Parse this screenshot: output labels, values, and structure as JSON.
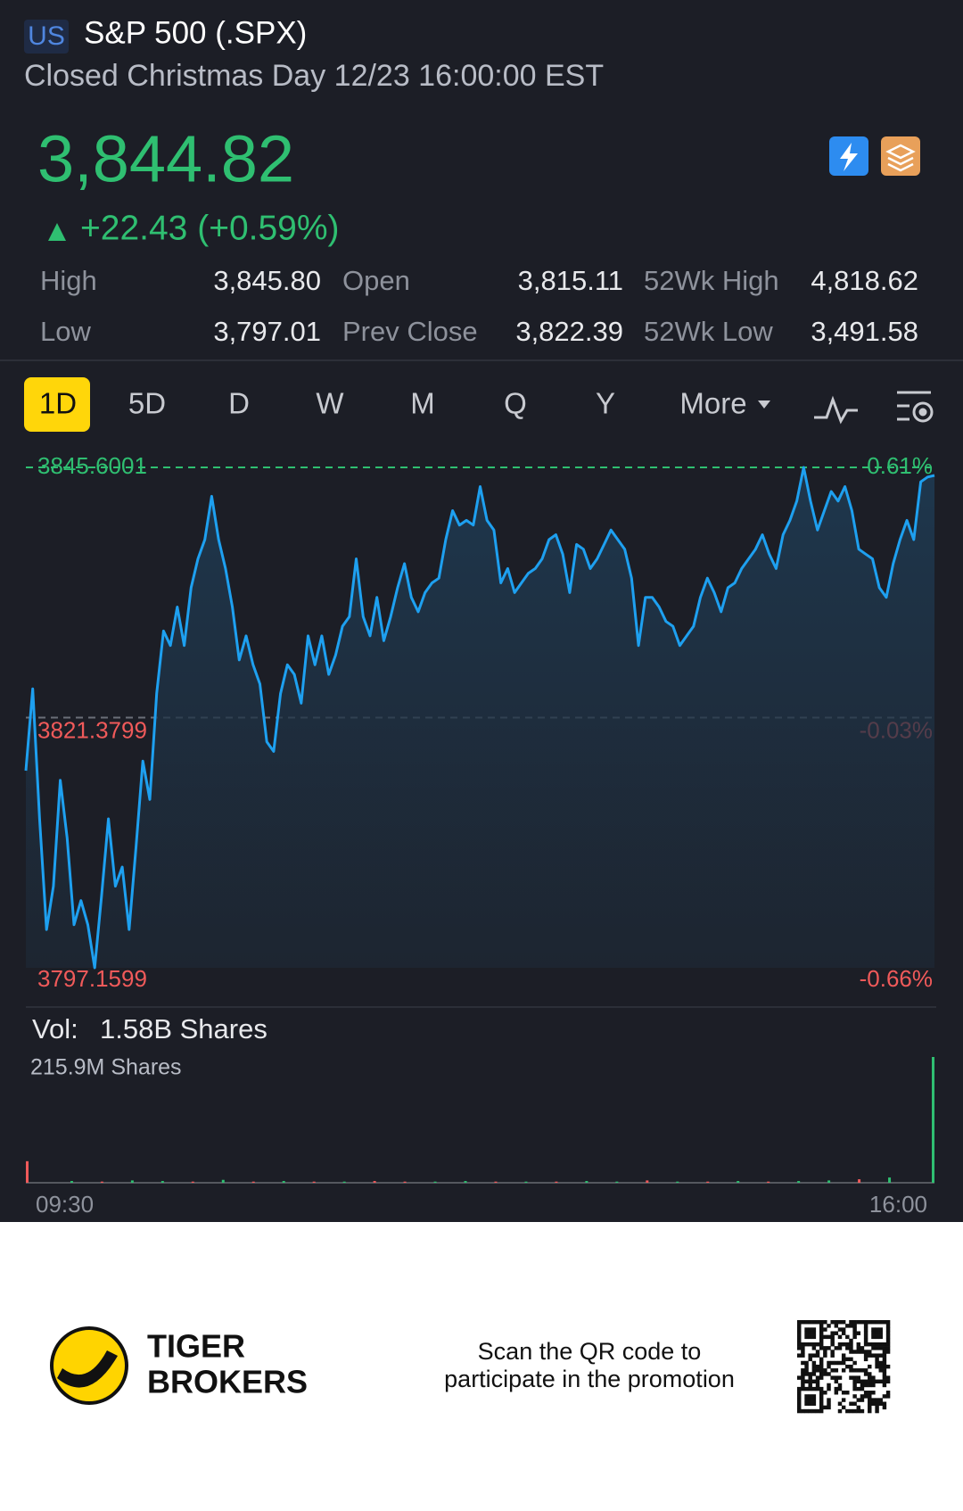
{
  "header": {
    "market": "US",
    "title": "S&P 500 (.SPX)",
    "status": "Closed Christmas Day 12/23 16:00:00 EST"
  },
  "quote": {
    "price": "3,844.82",
    "change": "+22.43 (+0.59%)"
  },
  "stats": {
    "rows": [
      [
        "High",
        "3,845.80",
        "Open",
        "3,815.11",
        "52Wk High",
        "4,818.62"
      ],
      [
        "Low",
        "3,797.01",
        "Prev Close",
        "3,822.39",
        "52Wk Low",
        "3,491.58"
      ]
    ]
  },
  "tabs": {
    "items": [
      "1D",
      "5D",
      "D",
      "W",
      "M",
      "Q",
      "Y",
      "More"
    ],
    "active": "1D"
  },
  "chart_data": [
    {
      "type": "line",
      "color": "#1ea0f0",
      "up_color": "#2fbf71",
      "down_color": "#f05a5a",
      "values": [
        3816.24,
        3824.16,
        3811.58,
        3800.86,
        3805.06,
        3815.31,
        3809.72,
        3801.33,
        3803.66,
        3801.33,
        3797.16,
        3804.13,
        3811.58,
        3805.06,
        3806.92,
        3800.86,
        3808.79,
        3817.17,
        3813.45,
        3823.7,
        3829.76,
        3828.36,
        3832.09,
        3828.36,
        3833.95,
        3836.75,
        3838.61,
        3842.8,
        3838.61,
        3835.81,
        3832.09,
        3826.96,
        3829.29,
        3826.49,
        3824.63,
        3819.04,
        3818.11,
        3823.7,
        3826.49,
        3825.56,
        3822.77,
        3829.29,
        3826.49,
        3829.29,
        3825.56,
        3827.43,
        3830.22,
        3831.15,
        3836.75,
        3831.15,
        3829.29,
        3833.02,
        3828.82,
        3831.15,
        3833.95,
        3836.28,
        3833.02,
        3831.62,
        3833.48,
        3834.42,
        3834.88,
        3838.61,
        3841.41,
        3840.01,
        3840.47,
        3840.01,
        3843.74,
        3840.47,
        3839.54,
        3834.42,
        3835.81,
        3833.48,
        3834.42,
        3835.35,
        3835.81,
        3836.75,
        3838.61,
        3839.08,
        3837.21,
        3833.48,
        3838.14,
        3837.68,
        3835.81,
        3836.75,
        3838.14,
        3839.54,
        3838.61,
        3837.68,
        3834.88,
        3828.36,
        3833.02,
        3833.02,
        3832.09,
        3830.69,
        3830.22,
        3828.36,
        3829.29,
        3830.22,
        3833.02,
        3834.88,
        3833.48,
        3831.62,
        3833.95,
        3834.42,
        3835.81,
        3836.75,
        3837.68,
        3839.08,
        3837.21,
        3835.81,
        3839.08,
        3840.47,
        3842.34,
        3845.6,
        3842.34,
        3839.54,
        3841.41,
        3843.27,
        3842.34,
        3843.74,
        3841.41,
        3837.68,
        3837.21,
        3836.75,
        3833.95,
        3833.02,
        3836.28,
        3838.61,
        3840.47,
        3838.61,
        3844.2,
        3844.67,
        3844.82
      ],
      "ylim": [
        3797.1599,
        3845.6001
      ],
      "yticks": [
        3797.1599,
        3821.3799,
        3845.6001
      ],
      "y2lim": [
        -0.66,
        0.61
      ],
      "y2ticks": [
        {
          "value": -0.66,
          "label": "-0.66%"
        },
        {
          "value": -0.03,
          "label": "-0.03%"
        },
        {
          "value": 0.61,
          "label": "0.61%"
        }
      ]
    },
    {
      "type": "bar",
      "label": "Vol:",
      "total": "1.58B Shares",
      "values": [
        37,
        3,
        2,
        4,
        3,
        2,
        5,
        2,
        3,
        2,
        2,
        3,
        2,
        2,
        3,
        2,
        2,
        2,
        3,
        2,
        4,
        2,
        2,
        3,
        2,
        3,
        4,
        6,
        9,
        215.9
      ],
      "colors": [
        "#f05a5a",
        "#2fbf71",
        "#f05a5a",
        "#2fbf71",
        "#2fbf71",
        "#f05a5a",
        "#2fbf71",
        "#f05a5a",
        "#2fbf71",
        "#f05a5a",
        "#2fbf71",
        "#f05a5a",
        "#f05a5a",
        "#2fbf71",
        "#2fbf71",
        "#f05a5a",
        "#2fbf71",
        "#f05a5a",
        "#2fbf71",
        "#2fbf71",
        "#f05a5a",
        "#2fbf71",
        "#f05a5a",
        "#2fbf71",
        "#f05a5a",
        "#2fbf71",
        "#2fbf71",
        "#f05a5a",
        "#2fbf71",
        "#2fbf71"
      ],
      "ylim": [
        0,
        215.9
      ],
      "yticks": [
        {
          "value": 215.9,
          "label": "215.9M Shares"
        }
      ],
      "x_labels": [
        "09:30",
        "16:00"
      ]
    }
  ],
  "footer": {
    "brand": [
      "TIGER",
      "BROKERS"
    ],
    "promo": [
      "Scan the QR code to",
      "participate in the promotion"
    ]
  }
}
